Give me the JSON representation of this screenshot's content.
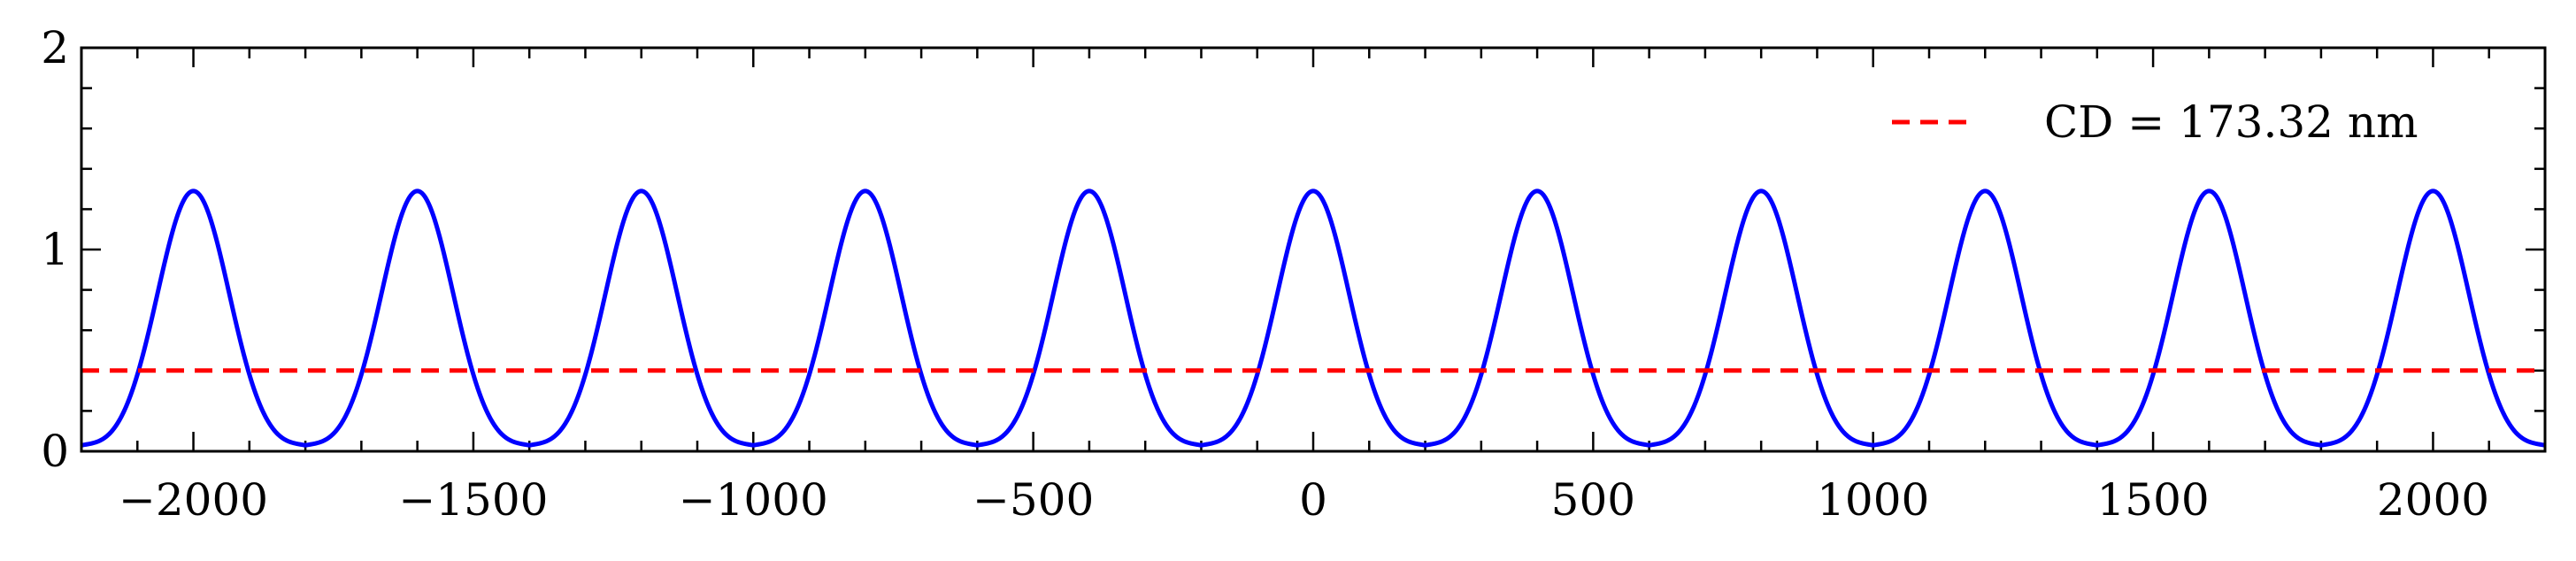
{
  "chart_data": {
    "type": "line",
    "title": "",
    "xlabel": "",
    "ylabel": "",
    "xlim": [
      -2200,
      2200
    ],
    "ylim": [
      0,
      2
    ],
    "x_ticks": [
      -2000,
      -1500,
      -1000,
      -500,
      0,
      500,
      1000,
      1500,
      2000
    ],
    "x_tick_labels": [
      "−2000",
      "−1500",
      "−1000",
      "−500",
      "0",
      "500",
      "1000",
      "1500",
      "2000"
    ],
    "y_ticks": [
      0,
      1,
      2
    ],
    "y_tick_labels": [
      "0",
      "1",
      "2"
    ],
    "grid": false,
    "legend_position": "top-right",
    "series": [
      {
        "kind": "periodic-intensity",
        "color": "#0000ff",
        "period": 400,
        "peak_centers": [
          -2000,
          -1600,
          -1200,
          -800,
          -400,
          0,
          400,
          800,
          1200,
          1600,
          2000
        ],
        "peak_value": 1.29,
        "minimum_value": 0.0,
        "side_lobe_value": 0.02
      },
      {
        "name": "CD = 173.32 nm",
        "kind": "threshold",
        "color": "#ff0000",
        "linestyle": "dashed",
        "value": 0.4
      }
    ]
  }
}
